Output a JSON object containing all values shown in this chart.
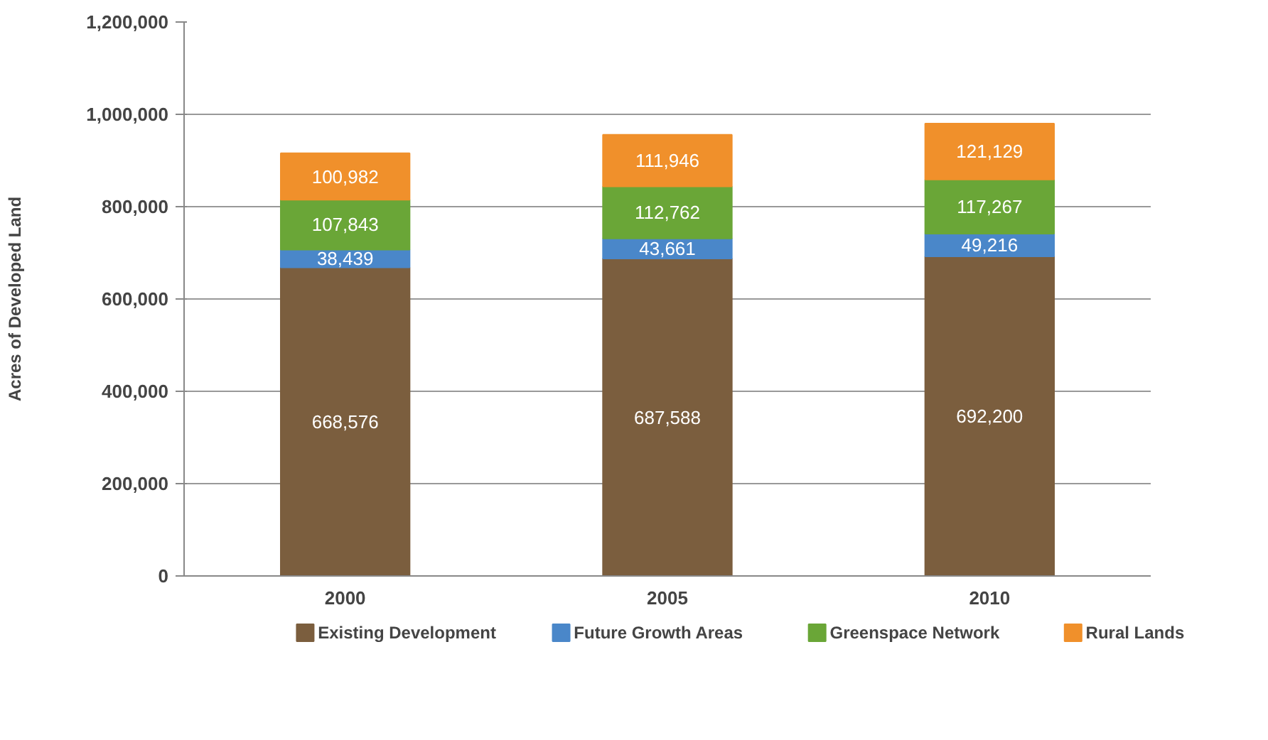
{
  "chart_data": {
    "type": "bar",
    "stacked": true,
    "ylabel": "Acres of Developed Land",
    "categories": [
      "2000",
      "2005",
      "2010"
    ],
    "series": [
      {
        "name": "Existing Development",
        "color": "#7b5e3e",
        "values": [
          668576,
          687588,
          692200
        ],
        "value_labels": [
          "668,576",
          "687,588",
          "692,200"
        ]
      },
      {
        "name": "Future Growth Areas",
        "color": "#4a87c9",
        "values": [
          38439,
          43661,
          49216
        ],
        "value_labels": [
          "38,439",
          "43,661",
          "49,216"
        ]
      },
      {
        "name": "Greenspace Network",
        "color": "#6aa637",
        "values": [
          107843,
          112762,
          117267
        ],
        "value_labels": [
          "107,843",
          "112,762",
          "117,267"
        ]
      },
      {
        "name": "Rural Lands",
        "color": "#f0902b",
        "values": [
          100982,
          111946,
          121129
        ],
        "value_labels": [
          "100,982",
          "111,946",
          "121,129"
        ]
      }
    ],
    "ylim": [
      0,
      1200000
    ],
    "yticks": [
      0,
      {
        "value": 200000,
        "label": "200,000"
      },
      {
        "value": 400000,
        "label": "400,000"
      },
      {
        "value": 600000,
        "label": "600,000"
      },
      {
        "value": 800000,
        "label": "800,000"
      },
      {
        "value": 1000000,
        "label": "1,000,000"
      },
      {
        "value": 1200000,
        "label": "1,200,000"
      }
    ],
    "grid": "y",
    "legend": "bottom"
  }
}
